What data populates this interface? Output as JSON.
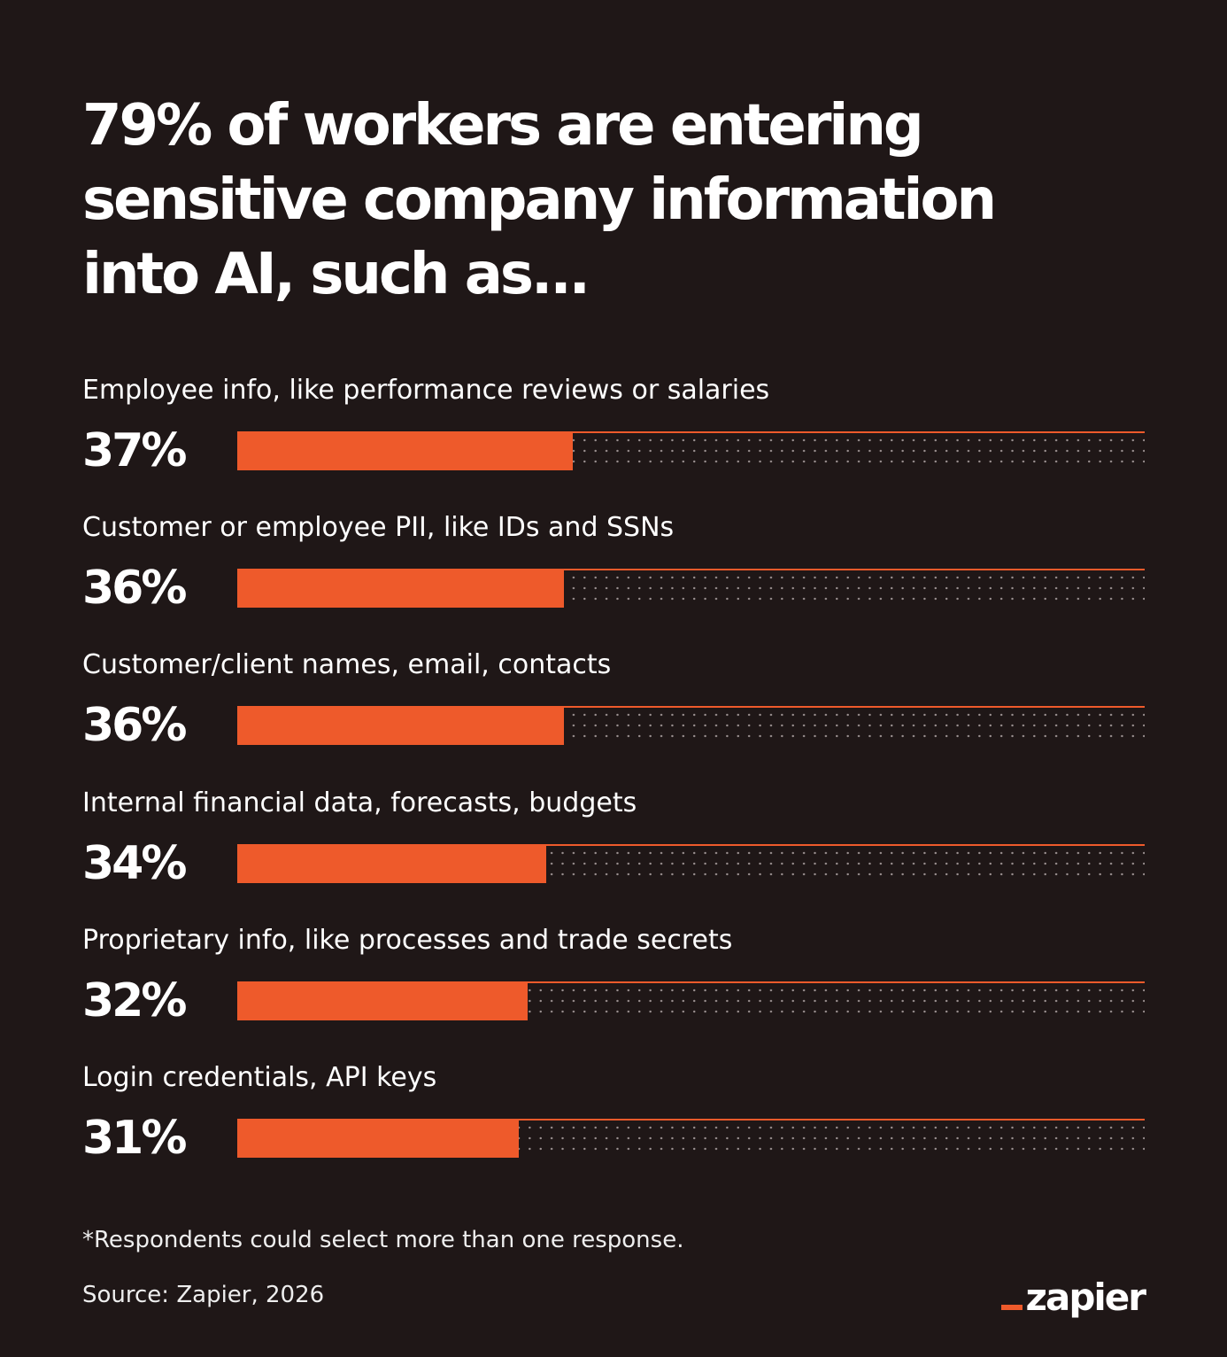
{
  "chart_data": {
    "type": "bar",
    "orientation": "horizontal",
    "title": "79% of workers are entering sensitive company information into AI, such as...",
    "categories": [
      "Employee info, like performance reviews or salaries",
      "Customer or employee PII, like IDs and SSNs",
      "Customer/client names, email, contacts",
      "Internal financial data, forecasts, budgets",
      "Proprietary info, like processes and trade secrets",
      "Login credentials, API keys"
    ],
    "values": [
      37,
      36,
      36,
      34,
      32,
      31
    ],
    "value_labels": [
      "37%",
      "36%",
      "36%",
      "34%",
      "32%",
      "31%"
    ],
    "color": "#ee5a2b",
    "xlim": [
      0,
      100
    ],
    "note": "*Respondents could select more than one response.",
    "source": "Source: Zapier, 2026",
    "logo": "zapier"
  }
}
